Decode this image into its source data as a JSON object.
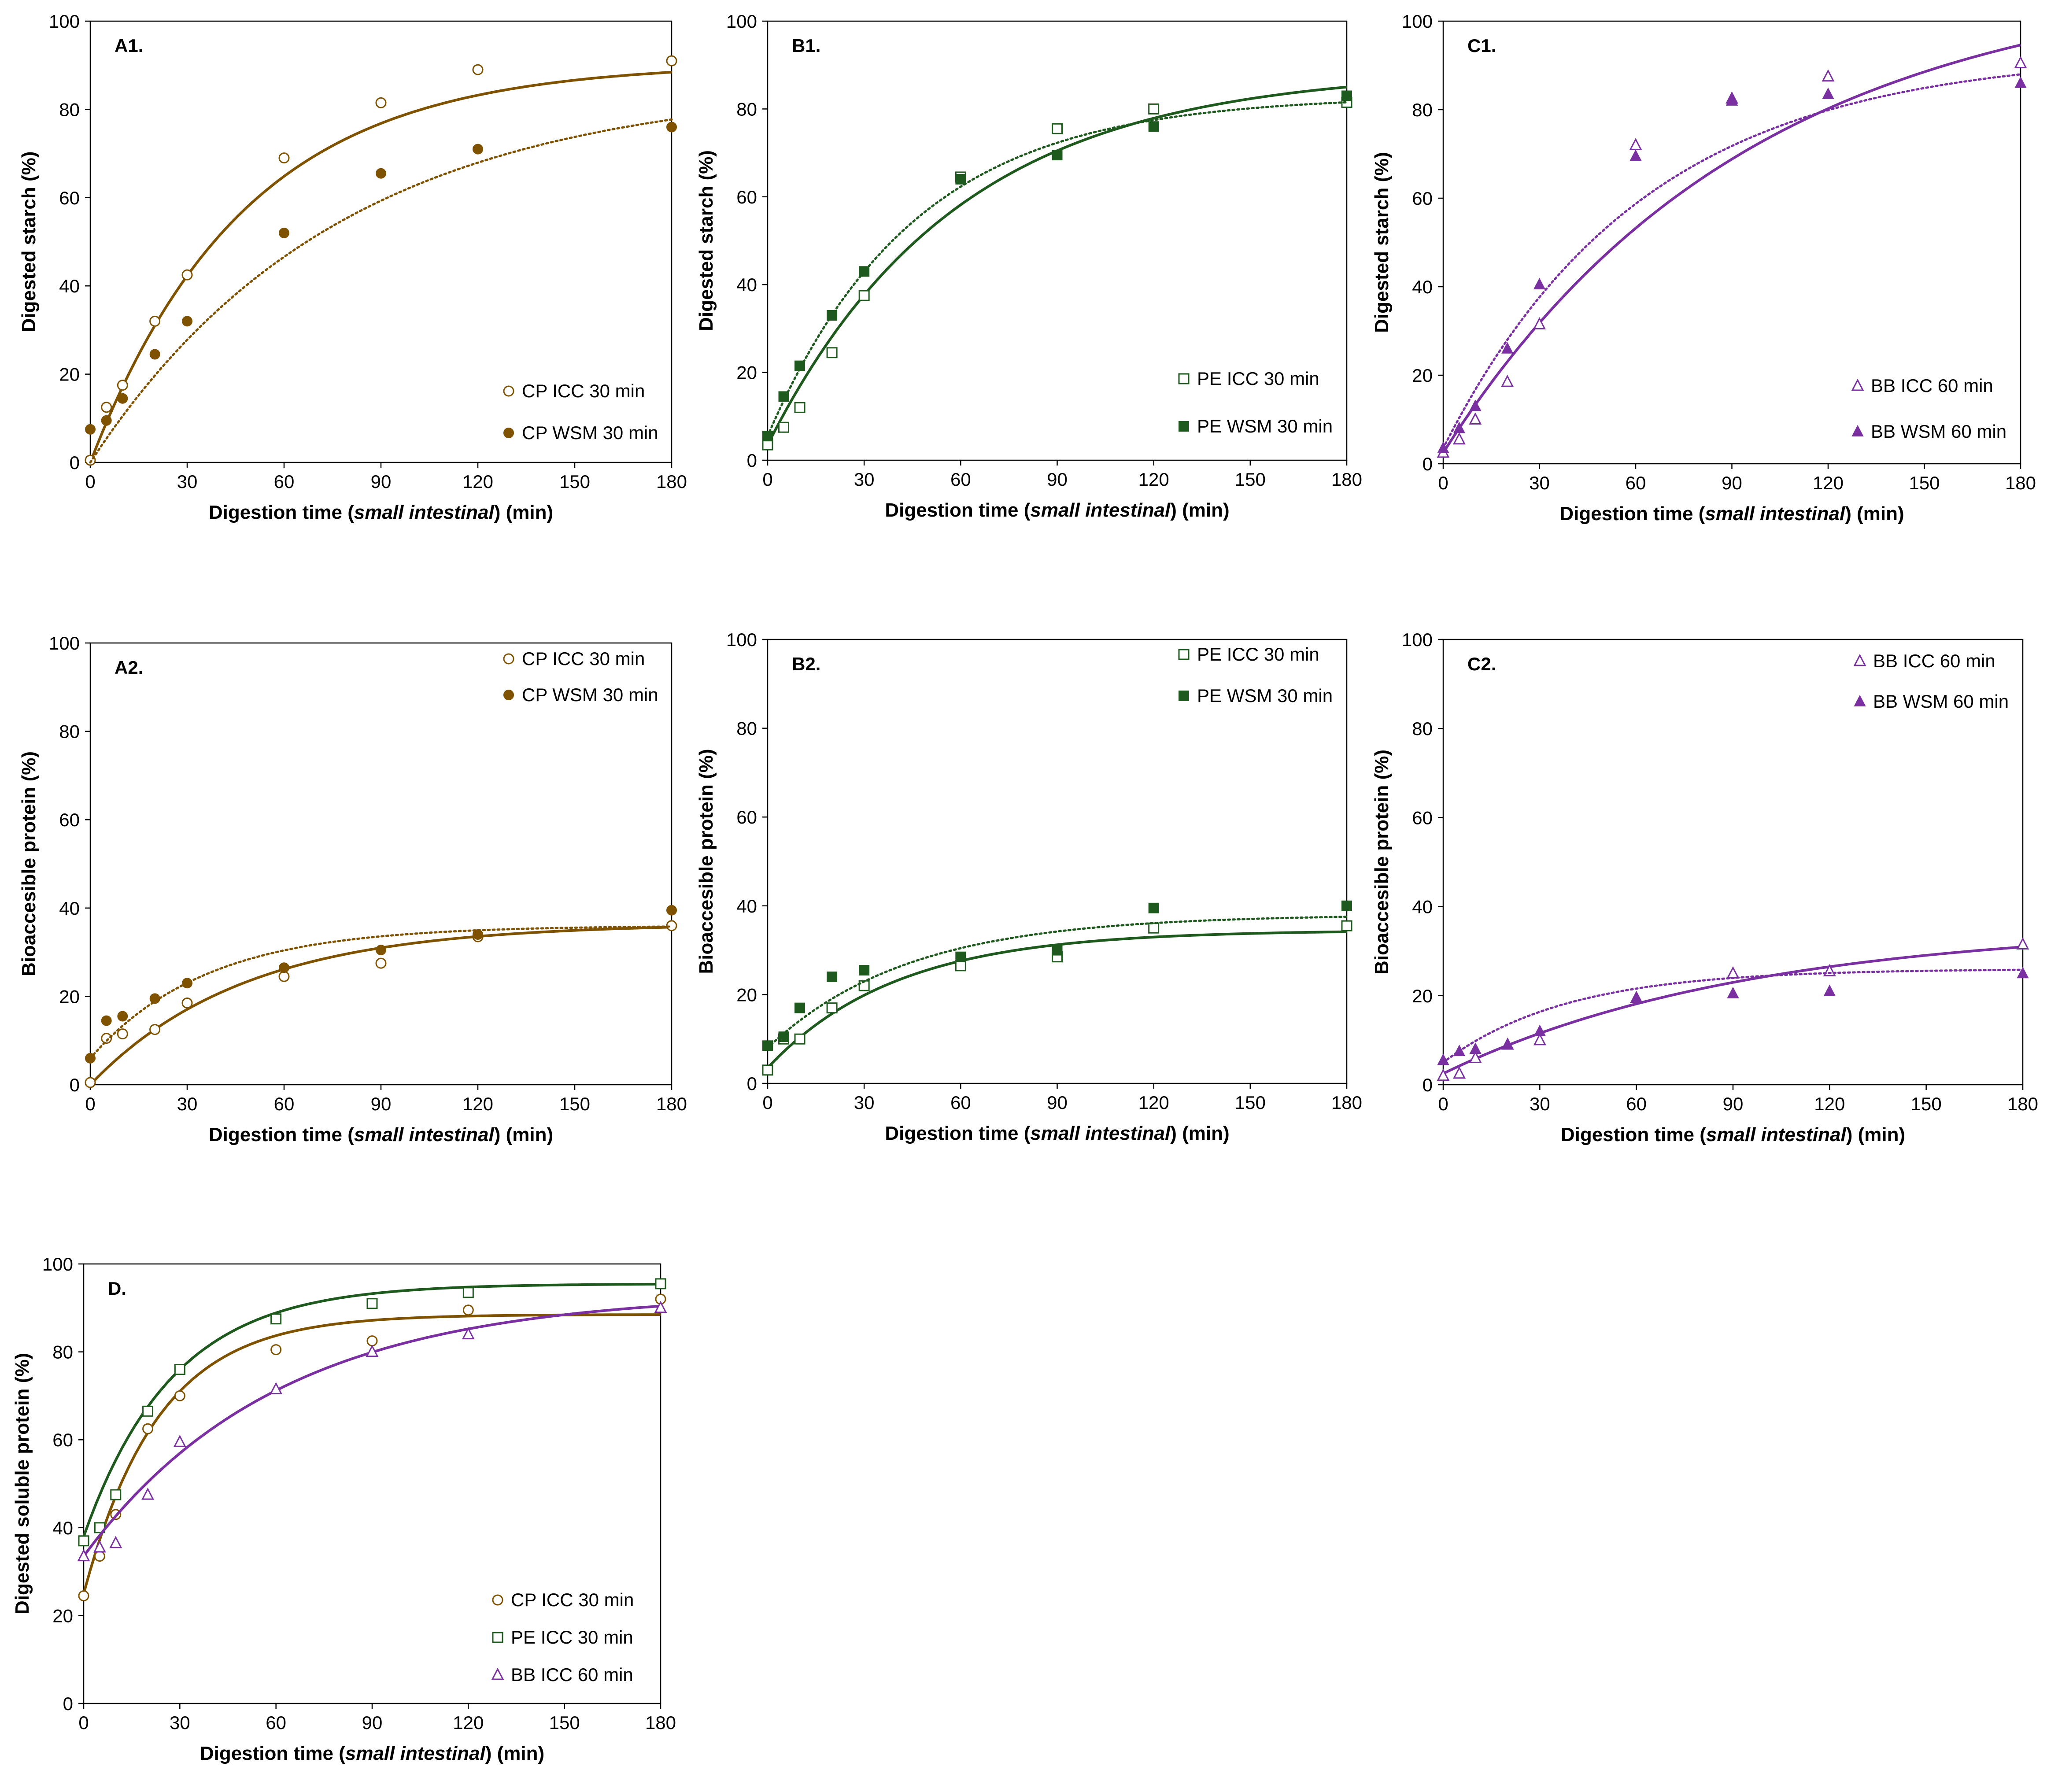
{
  "colors": {
    "CP": "#7f5200",
    "PE": "#1e5a1e",
    "BB": "#7a30a0"
  },
  "chart_data": [
    {
      "id": "A1",
      "type": "scatter",
      "panel_label": "A1.",
      "xlabel": "Digestion time (small intestinal) (min)",
      "xlabel_parts": [
        "Digestion time (",
        "small intestinal",
        ") (min)"
      ],
      "ylabel": "Digested starch (%)",
      "xlim": [
        0,
        180
      ],
      "ylim": [
        0,
        100
      ],
      "xticks": [
        0,
        30,
        60,
        90,
        120,
        150,
        180
      ],
      "yticks": [
        0,
        20,
        40,
        60,
        80,
        100
      ],
      "grid": false,
      "legend_position": "bottom-right",
      "series": [
        {
          "name": "CP ICC 30 min",
          "marker": "circle",
          "filled": false,
          "color_key": "CP",
          "fit": "solid",
          "fit_params": [
            90.5,
            0.021,
            0
          ],
          "x": [
            0,
            5,
            10,
            20,
            30,
            60,
            90,
            120,
            180
          ],
          "y": [
            0.5,
            12.5,
            17.5,
            32,
            42.5,
            69,
            81.5,
            89,
            91
          ]
        },
        {
          "name": "CP WSM 30 min",
          "marker": "circle",
          "filled": true,
          "color_key": "CP",
          "fit": "dotted",
          "fit_params": [
            86,
            0.013,
            0
          ],
          "x": [
            0,
            5,
            10,
            20,
            30,
            60,
            90,
            120,
            180
          ],
          "y": [
            7.5,
            9.5,
            14.5,
            24.5,
            32,
            52,
            65.5,
            71,
            76
          ]
        }
      ]
    },
    {
      "id": "B1",
      "type": "scatter",
      "panel_label": "B1.",
      "xlabel": "Digestion time (small intestinal) (min)",
      "xlabel_parts": [
        "Digestion time (",
        "small intestinal",
        ") (min)"
      ],
      "ylabel": "Digested starch (%)",
      "xlim": [
        0,
        180
      ],
      "ylim": [
        0,
        100
      ],
      "xticks": [
        0,
        30,
        60,
        90,
        120,
        150,
        180
      ],
      "yticks": [
        0,
        20,
        40,
        60,
        80,
        100
      ],
      "grid": false,
      "legend_position": "bottom-right",
      "series": [
        {
          "name": "PE ICC 30 min",
          "marker": "square",
          "filled": false,
          "color_key": "PE",
          "fit": "solid",
          "fit_params": [
            89,
            0.017,
            3.5
          ],
          "x": [
            0,
            5,
            10,
            20,
            30,
            60,
            90,
            120,
            180
          ],
          "y": [
            3.5,
            7.5,
            12,
            24.5,
            37.5,
            64.5,
            75.5,
            80,
            81.5
          ]
        },
        {
          "name": "PE WSM 30 min",
          "marker": "square",
          "filled": true,
          "color_key": "PE",
          "fit": "dotted",
          "fit_params": [
            83,
            0.022,
            5.5
          ],
          "x": [
            0,
            5,
            10,
            20,
            30,
            60,
            90,
            120,
            180
          ],
          "y": [
            5.5,
            14.5,
            21.5,
            33,
            43,
            64,
            69.5,
            76,
            83
          ]
        }
      ]
    },
    {
      "id": "C1",
      "type": "scatter",
      "panel_label": "C1.",
      "xlabel": "Digestion time (small intestinal) (min)",
      "xlabel_parts": [
        "Digestion time (",
        "small intestinal",
        ") (min)"
      ],
      "ylabel": "Digested starch (%)",
      "xlim": [
        0,
        180
      ],
      "ylim": [
        0,
        100
      ],
      "xticks": [
        0,
        30,
        60,
        90,
        120,
        150,
        180
      ],
      "yticks": [
        0,
        20,
        40,
        60,
        80,
        100
      ],
      "grid": false,
      "legend_position": "bottom-right",
      "series": [
        {
          "name": "BB ICC 60 min",
          "marker": "triangle",
          "filled": false,
          "color_key": "BB",
          "fit": "solid",
          "fit_params": [
            111,
            0.0105,
            2.5
          ],
          "x": [
            0,
            5,
            10,
            20,
            30,
            60,
            90,
            120,
            180
          ],
          "y": [
            2.5,
            5.5,
            10,
            18.5,
            31.5,
            72,
            82.5,
            87.5,
            90.5
          ]
        },
        {
          "name": "BB WSM 60 min",
          "marker": "triangle",
          "filled": true,
          "color_key": "BB",
          "fit": "dotted",
          "fit_params": [
            93,
            0.016,
            3.5
          ],
          "x": [
            0,
            5,
            10,
            20,
            30,
            60,
            90,
            120,
            180
          ],
          "y": [
            3.5,
            8,
            13,
            26,
            40.5,
            69.5,
            82,
            83.5,
            86
          ]
        }
      ]
    },
    {
      "id": "A2",
      "type": "scatter",
      "panel_label": "A2.",
      "xlabel": "Digestion time (small intestinal) (min)",
      "xlabel_parts": [
        "Digestion time (",
        "small intestinal",
        ") (min)"
      ],
      "ylabel": "Bioaccesible protein (%)",
      "xlim": [
        0,
        180
      ],
      "ylim": [
        0,
        100
      ],
      "xticks": [
        0,
        30,
        60,
        90,
        120,
        150,
        180
      ],
      "yticks": [
        0,
        20,
        40,
        60,
        80,
        100
      ],
      "grid": false,
      "legend_position": "top-right",
      "series": [
        {
          "name": "CP ICC 30 min",
          "marker": "circle",
          "filled": false,
          "color_key": "CP",
          "fit": "solid",
          "fit_params": [
            36.5,
            0.021,
            0
          ],
          "x": [
            0,
            5,
            10,
            20,
            30,
            60,
            90,
            120,
            180
          ],
          "y": [
            0.5,
            10.5,
            11.5,
            12.5,
            18.5,
            24.5,
            27.5,
            33.5,
            36
          ]
        },
        {
          "name": "CP WSM 30 min",
          "marker": "circle",
          "filled": true,
          "color_key": "CP",
          "fit": "dotted",
          "fit_params": [
            36,
            0.028,
            6
          ],
          "x": [
            0,
            5,
            10,
            20,
            30,
            60,
            90,
            120,
            180
          ],
          "y": [
            6,
            14.5,
            15.5,
            19.5,
            23,
            26.5,
            30.5,
            34,
            39.5
          ]
        }
      ]
    },
    {
      "id": "B2",
      "type": "scatter",
      "panel_label": "B2.",
      "xlabel": "Digestion time (small intestinal) (min)",
      "xlabel_parts": [
        "Digestion time (",
        "small intestinal",
        ") (min)"
      ],
      "ylabel": "Bioaccesible protein (%)",
      "xlim": [
        0,
        180
      ],
      "ylim": [
        0,
        100
      ],
      "xticks": [
        0,
        30,
        60,
        90,
        120,
        150,
        180
      ],
      "yticks": [
        0,
        20,
        40,
        60,
        80,
        100
      ],
      "grid": false,
      "legend_position": "top-right",
      "series": [
        {
          "name": "PE ICC 30 min",
          "marker": "square",
          "filled": false,
          "color_key": "PE",
          "fit": "solid",
          "fit_params": [
            34.5,
            0.025,
            3.5
          ],
          "x": [
            0,
            5,
            10,
            20,
            30,
            60,
            90,
            120,
            180
          ],
          "y": [
            3,
            10,
            10,
            17,
            22,
            26.5,
            28.5,
            35,
            35.5
          ]
        },
        {
          "name": "PE WSM 30 min",
          "marker": "square",
          "filled": true,
          "color_key": "PE",
          "fit": "dotted",
          "fit_params": [
            38,
            0.023,
            8
          ],
          "x": [
            0,
            5,
            10,
            20,
            30,
            60,
            90,
            120,
            180
          ],
          "y": [
            8.5,
            10.5,
            17,
            24,
            25.5,
            28.5,
            30,
            39.5,
            40
          ]
        }
      ]
    },
    {
      "id": "C2",
      "type": "scatter",
      "panel_label": "C2.",
      "xlabel": "Digestion time (small intestinal) (min)",
      "xlabel_parts": [
        "Digestion time (",
        "small intestinal",
        ") (min)"
      ],
      "ylabel": "Bioaccesible protein (%)",
      "xlim": [
        0,
        180
      ],
      "ylim": [
        0,
        100
      ],
      "xticks": [
        0,
        30,
        60,
        90,
        120,
        150,
        180
      ],
      "yticks": [
        0,
        20,
        40,
        60,
        80,
        100
      ],
      "grid": false,
      "legend_position": "top-right",
      "series": [
        {
          "name": "BB ICC 60 min",
          "marker": "triangle",
          "filled": false,
          "color_key": "BB",
          "fit": "solid",
          "fit_params": [
            36,
            0.0105,
            2.5
          ],
          "x": [
            0,
            5,
            10,
            20,
            30,
            60,
            90,
            120,
            180
          ],
          "y": [
            2,
            2.5,
            6,
            9,
            10,
            19.5,
            25,
            25.5,
            31.5
          ]
        },
        {
          "name": "BB WSM 60 min",
          "marker": "triangle",
          "filled": true,
          "color_key": "BB",
          "fit": "dotted",
          "fit_params": [
            26,
            0.026,
            5
          ],
          "x": [
            0,
            5,
            10,
            20,
            30,
            60,
            90,
            120,
            180
          ],
          "y": [
            5.5,
            7.5,
            8,
            9,
            12,
            19.5,
            20.5,
            21,
            25
          ]
        }
      ]
    },
    {
      "id": "D",
      "type": "scatter",
      "panel_label": "D.",
      "xlabel": "Digestion time (small intestinal) (min)",
      "xlabel_parts": [
        "Digestion time (",
        "small intestinal",
        ") (min)"
      ],
      "ylabel": "Digested soluble protein (%)",
      "xlim": [
        0,
        180
      ],
      "ylim": [
        0,
        100
      ],
      "xticks": [
        0,
        30,
        60,
        90,
        120,
        150,
        180
      ],
      "yticks": [
        0,
        20,
        40,
        60,
        80,
        100
      ],
      "grid": false,
      "legend_position": "bottom-right",
      "series": [
        {
          "name": "CP ICC 30 min",
          "marker": "circle",
          "filled": false,
          "color_key": "CP",
          "fit": "solid",
          "fit_params": [
            88.5,
            0.043,
            25
          ],
          "x": [
            0,
            5,
            10,
            20,
            30,
            60,
            90,
            120,
            180
          ],
          "y": [
            24.5,
            33.5,
            43,
            62.5,
            70,
            80.5,
            82.5,
            89.5,
            92
          ]
        },
        {
          "name": "PE ICC 30 min",
          "marker": "square",
          "filled": false,
          "color_key": "PE",
          "fit": "solid",
          "fit_params": [
            95.5,
            0.036,
            38
          ],
          "x": [
            0,
            5,
            10,
            20,
            30,
            60,
            90,
            120,
            180
          ],
          "y": [
            37,
            40,
            47.5,
            66.5,
            76,
            87.5,
            91,
            93.5,
            95.5
          ]
        },
        {
          "name": "BB ICC 60 min",
          "marker": "triangle",
          "filled": false,
          "color_key": "BB",
          "fit": "solid",
          "fit_params": [
            93.5,
            0.0165,
            33.5
          ],
          "x": [
            0,
            5,
            10,
            20,
            30,
            60,
            90,
            120,
            180
          ],
          "y": [
            33.5,
            35.5,
            36.5,
            47.5,
            59.5,
            71.5,
            80,
            84,
            90
          ]
        }
      ]
    }
  ]
}
